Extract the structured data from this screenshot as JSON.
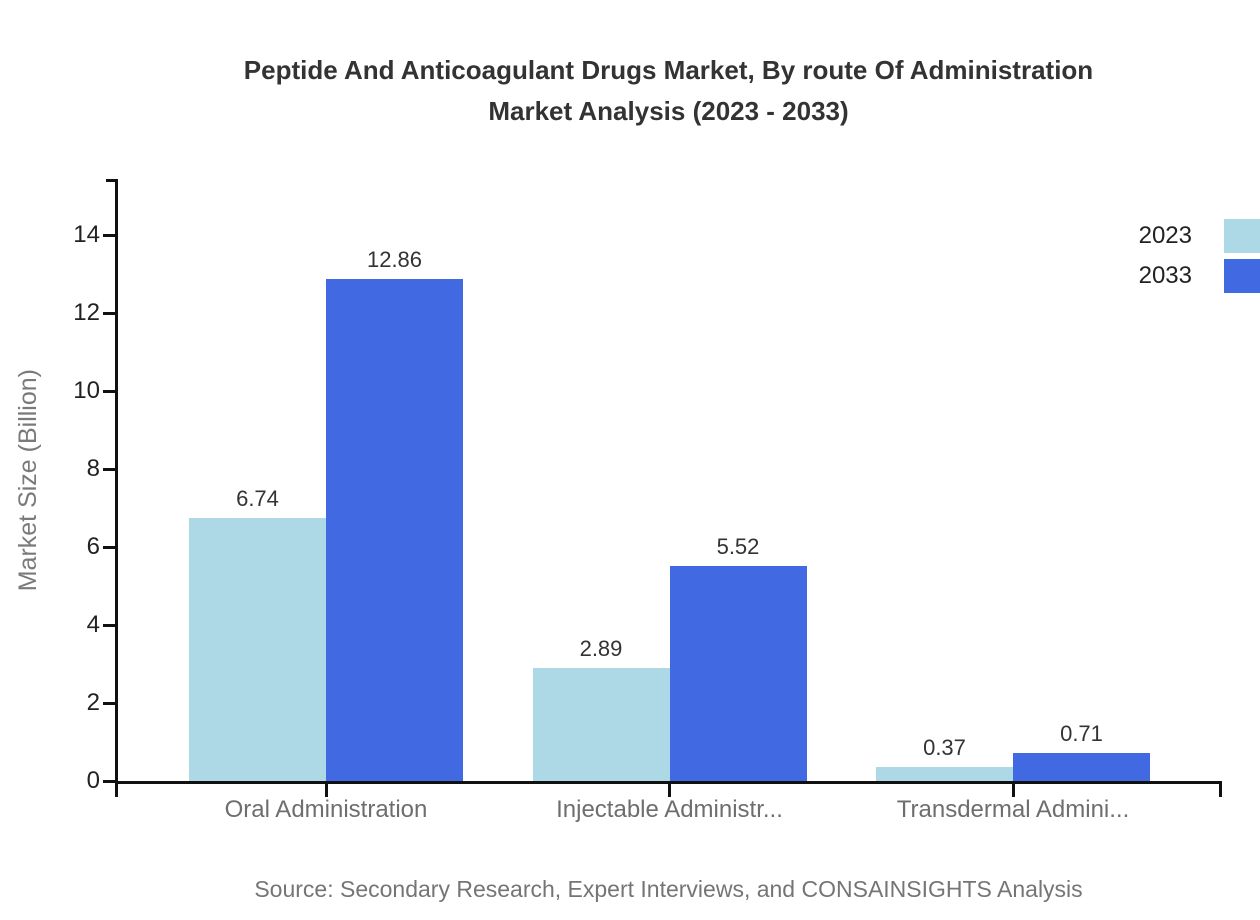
{
  "title": {
    "line1": "Peptide And Anticoagulant Drugs Market, By route Of Administration",
    "line2": "Market Analysis (2023 - 2033)"
  },
  "source_note": "Source: Secondary Research, Expert Interviews, and CONSAINSIGHTS Analysis",
  "chart_data": {
    "type": "bar",
    "title": "Peptide And Anticoagulant Drugs Market, By route Of Administration Market Analysis (2023 - 2033)",
    "ylabel": "Market Size (Billion)",
    "xlabel": "",
    "categories": [
      "Oral Administration",
      "Injectable Administr...",
      "Transdermal Admini..."
    ],
    "series": [
      {
        "name": "2023",
        "color": "#ADD8E6",
        "values": [
          6.74,
          2.89,
          0.37
        ]
      },
      {
        "name": "2033",
        "color": "#4169E1",
        "values": [
          12.86,
          5.52,
          0.71
        ]
      }
    ],
    "yticks": [
      0,
      2,
      4,
      6,
      8,
      10,
      12,
      14
    ],
    "ylim": [
      0,
      15.41
    ],
    "grid": false,
    "value_labels": true,
    "legend_position": "top-right",
    "axis_color": "#111111"
  }
}
